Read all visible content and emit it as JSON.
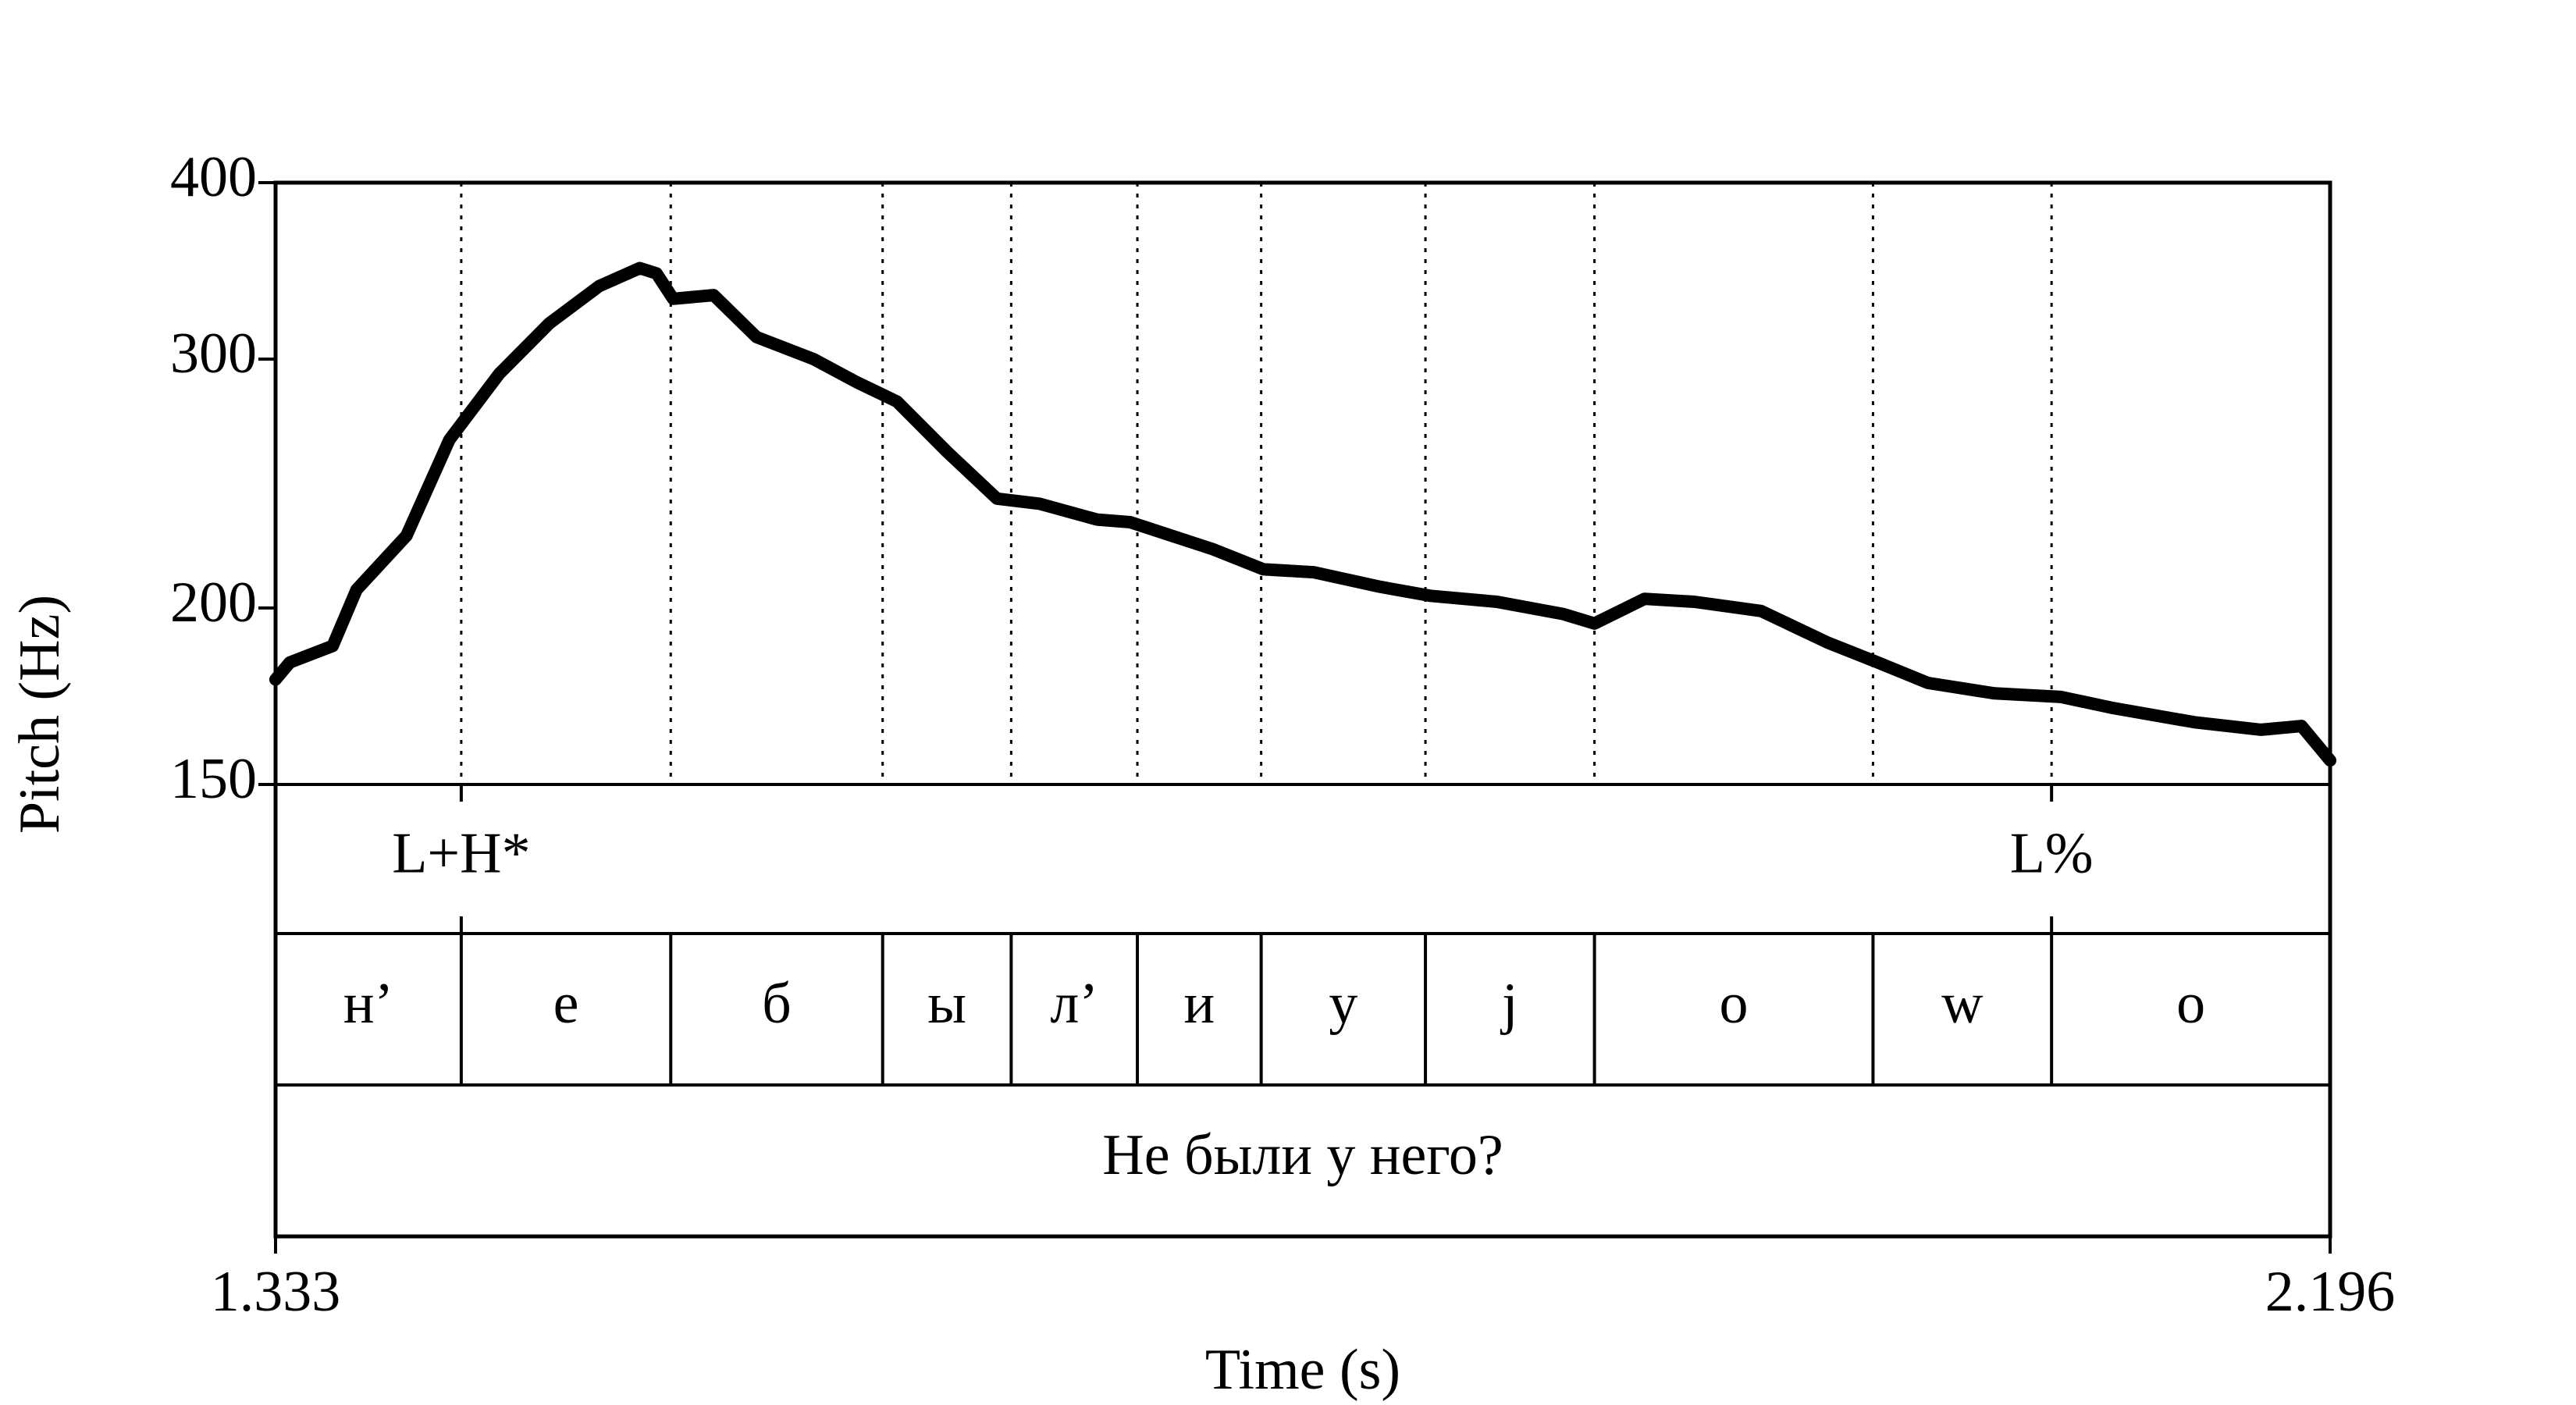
{
  "chart_data": {
    "type": "line",
    "y_label": "Pitch (Hz)",
    "x_label": "Time (s)",
    "xlim": [
      1.333,
      2.196
    ],
    "xticks": [
      1.333,
      2.196
    ],
    "ylim": [
      150,
      400
    ],
    "yticks": [
      150,
      200,
      300,
      400
    ],
    "log_y": true,
    "x": [
      1.333,
      1.339,
      1.357,
      1.367,
      1.388,
      1.406,
      1.427,
      1.448,
      1.469,
      1.486,
      1.493,
      1.5,
      1.517,
      1.535,
      1.559,
      1.577,
      1.594,
      1.615,
      1.636,
      1.654,
      1.678,
      1.692,
      1.727,
      1.748,
      1.769,
      1.797,
      1.818,
      1.846,
      1.874,
      1.887,
      1.908,
      1.929,
      1.957,
      1.985,
      2.006,
      2.027,
      2.055,
      2.083,
      2.104,
      2.139,
      2.167,
      2.184,
      2.196
    ],
    "series": [
      {
        "color": "#000000",
        "values": [
          178,
          183,
          188,
          206,
          225,
          263,
          293,
          318,
          338,
          348,
          345,
          331,
          333,
          311,
          300,
          289,
          280,
          258,
          239,
          237,
          231,
          230,
          220,
          213,
          212,
          207,
          204,
          202,
          198,
          195,
          203,
          202,
          199,
          189,
          183,
          177,
          174,
          173,
          170,
          166,
          164,
          165,
          156
        ]
      }
    ],
    "boundaries": [
      1.411,
      1.499,
      1.588,
      1.642,
      1.695,
      1.747,
      1.816,
      1.887,
      2.004,
      2.079
    ],
    "tones": [
      {
        "time": 1.411,
        "label": "L+H*"
      },
      {
        "time": 2.079,
        "label": "L%"
      }
    ],
    "segments": [
      "н’",
      "е",
      "б",
      "ы",
      "л’",
      "и",
      "у",
      "j",
      "о",
      "w",
      "о"
    ],
    "sentence": "Не были у него?"
  }
}
